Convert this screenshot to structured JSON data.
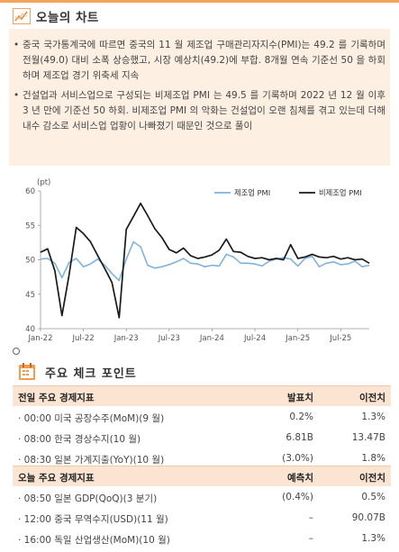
{
  "section1": {
    "title": "오늘의 차트",
    "bullet_mark": "•",
    "bullets": [
      "중국 국가통계국에 따르면 중국의 11 월 제조업 구매관리자지수(PMI)는 49.2 를 기록하며 전월(49.0) 대비 소폭 상승했고, 시장 예상치(49.2)에 부합. 8개월 연속 기준선 50 을 하회하며 제조업 경기 위축세 지속",
      "건설업과 서비스업으로 구성되는 비제조업 PMI 는 49.5 를 기록하며 2022 년 12 월 이후 3 년 만에 기준선 50 하회. 비제조업 PMI 의 악화는 건설업이 오랜 침체를 겪고 있는데 더해 내수 감소로 서비스업 업황이 나빠졌기 때문인 것으로 풀이"
    ]
  },
  "chart_data": {
    "type": "line",
    "unit_label": "(pt)",
    "ylim": [
      40,
      60
    ],
    "yticks": [
      "40",
      "45",
      "50",
      "55",
      "60"
    ],
    "xticks": [
      "Jan-22",
      "Jul-22",
      "Jan-23",
      "Jul-23",
      "Jan-24",
      "Jul-24",
      "Jan-25",
      "Jul-25"
    ],
    "x": [
      "2022-01",
      "2022-02",
      "2022-03",
      "2022-04",
      "2022-05",
      "2022-06",
      "2022-07",
      "2022-08",
      "2022-09",
      "2022-10",
      "2022-11",
      "2022-12",
      "2023-01",
      "2023-02",
      "2023-03",
      "2023-04",
      "2023-05",
      "2023-06",
      "2023-07",
      "2023-08",
      "2023-09",
      "2023-10",
      "2023-11",
      "2023-12",
      "2024-01",
      "2024-02",
      "2024-03",
      "2024-04",
      "2024-05",
      "2024-06",
      "2024-07",
      "2024-08",
      "2024-09",
      "2024-10",
      "2024-11",
      "2024-12",
      "2025-01",
      "2025-02",
      "2025-03",
      "2025-04",
      "2025-05",
      "2025-06",
      "2025-07",
      "2025-08",
      "2025-09",
      "2025-10",
      "2025-11"
    ],
    "series": [
      {
        "name": "제조업 PMI",
        "color": "#7fb2dd",
        "values": [
          50.1,
          50.2,
          49.5,
          47.4,
          49.6,
          50.2,
          49.0,
          49.4,
          50.1,
          49.2,
          48.0,
          47.0,
          50.1,
          52.6,
          51.9,
          49.2,
          48.8,
          49.0,
          49.3,
          49.7,
          50.2,
          49.5,
          49.4,
          49.0,
          49.2,
          49.1,
          50.8,
          50.4,
          49.5,
          49.5,
          49.4,
          49.1,
          49.8,
          50.1,
          50.3,
          50.1,
          49.1,
          50.2,
          50.5,
          49.0,
          49.5,
          49.7,
          49.3,
          49.4,
          49.8,
          49.0,
          49.2
        ]
      },
      {
        "name": "비제조업 PMI",
        "color": "#1a1a1a",
        "values": [
          51.1,
          51.6,
          48.4,
          41.9,
          47.8,
          54.7,
          53.8,
          52.6,
          50.6,
          48.7,
          46.7,
          41.6,
          54.4,
          56.3,
          58.2,
          56.4,
          54.5,
          53.2,
          51.5,
          51.0,
          51.7,
          50.6,
          50.2,
          50.4,
          50.7,
          51.4,
          53.0,
          51.2,
          51.1,
          50.5,
          50.2,
          50.3,
          50.0,
          50.2,
          50.0,
          52.2,
          50.2,
          50.4,
          50.8,
          50.4,
          50.3,
          50.5,
          50.1,
          50.3,
          50.0,
          50.1,
          49.5
        ]
      }
    ]
  },
  "section2": {
    "title": "주요 체크 포인트",
    "table1": {
      "headers": [
        "전일 주요 경제지표",
        "발표치",
        "이전치"
      ],
      "rows": [
        [
          "· 00:00 미국 공장수주(MoM)(9 월)",
          "0.2%",
          "1.3%"
        ],
        [
          "· 08:00 한국 경상수지(10 월)",
          "6.81B",
          "13.47B"
        ],
        [
          "· 08:30 일본 가계지출(YoY)(10 월)",
          "(3.0%)",
          "1.8%"
        ]
      ]
    },
    "table2": {
      "headers": [
        "오늘 주요 경제지표",
        "예측치",
        "이전치"
      ],
      "rows": [
        [
          "· 08:50 일본 GDP(QoQ)(3 분기)",
          "(0.4%)",
          "0.5%"
        ],
        [
          "· 12:00 중국 무역수지(USD)(11 월)",
          "–",
          "90.07B"
        ],
        [
          "· 16:00 독일 산업생산(MoM)(10 월)",
          "–",
          "1.3%"
        ]
      ]
    }
  }
}
